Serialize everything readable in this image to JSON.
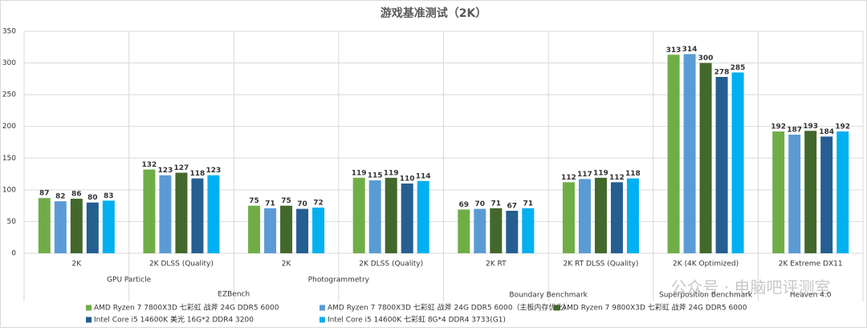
{
  "chart_data": {
    "type": "bar",
    "title": "游戏基准测试（2K）",
    "categories": [
      "2K",
      "2K DLSS (Quality)",
      "2K",
      "2K DLSS (Quality)",
      "2K RT",
      "2K RT DLSS (Quality)",
      "2K (4K Optimized)",
      "2K Extreme DX11"
    ],
    "category_groups": [
      [
        "GPU Particle",
        "GPU Particle",
        "Photogrammetry",
        "Photogrammetry",
        "Boundary Benchmark",
        "Boundary Benchmark",
        "Superposition Benchmark",
        "Heaven 4.0"
      ],
      [
        "EZBench",
        "EZBench",
        "EZBench",
        "EZBench",
        null,
        null,
        null,
        null
      ]
    ],
    "series": [
      {
        "name": "AMD Ryzen 7 7800X3D 七彩虹 战斧 24G DDR5 6000",
        "color": "#70ad47",
        "values": [
          87,
          132,
          75,
          119,
          69,
          112,
          313,
          192
        ]
      },
      {
        "name": "AMD Ryzen 7 7800X3D 七彩虹 战斧 24G DDR5 6000（主板内存优化）",
        "color": "#5b9bd5",
        "values": [
          82,
          123,
          71,
          115,
          70,
          117,
          314,
          187
        ]
      },
      {
        "name": "AMD Ryzen 7 9800X3D 七彩虹 战斧 24G DDR5 6000",
        "color": "#43682b",
        "values": [
          86,
          127,
          75,
          119,
          71,
          119,
          300,
          193
        ]
      },
      {
        "name": "Intel Core i5 14600K 美光 16G*2 DDR4 3200",
        "color": "#255e91",
        "values": [
          80,
          118,
          70,
          110,
          67,
          112,
          278,
          184
        ]
      },
      {
        "name": "Intel Core i5 14600K 七彩虹 8G*4 DDR4 3733(G1)",
        "color": "#00b0f0",
        "values": [
          83,
          123,
          72,
          114,
          71,
          118,
          285,
          192
        ]
      }
    ],
    "ylim": [
      0,
      350
    ],
    "yticks": [
      0,
      50,
      100,
      150,
      200,
      250,
      300,
      350
    ],
    "grid": true,
    "watermark": "公众号 · 电脑吧评测室"
  }
}
